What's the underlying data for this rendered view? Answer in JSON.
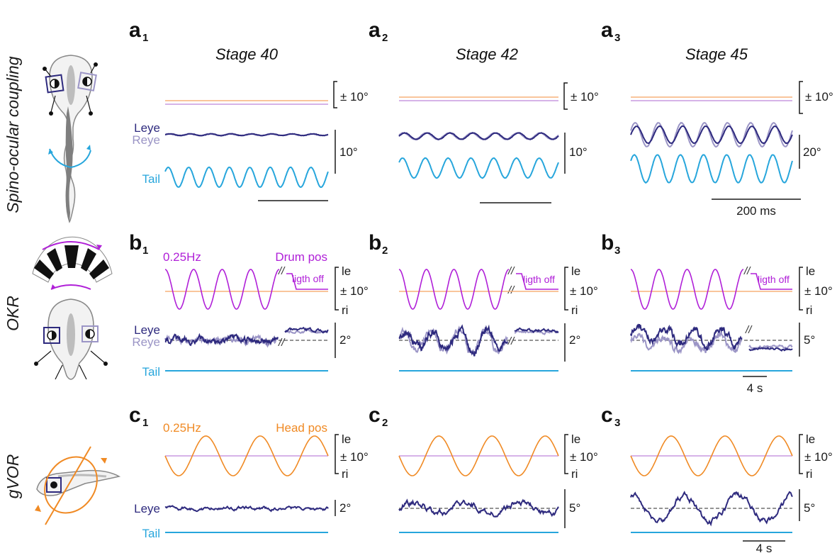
{
  "colors": {
    "leye": "#2e2a7e",
    "reye": "#9b95c6",
    "tail": "#27a6dc",
    "drum": "#b020d8",
    "head": "#f08a24",
    "ref_orange": "#f7b27a",
    "ref_violet": "#c99ae0",
    "black": "#1a1a1a",
    "gray": "#777777"
  },
  "icons": [
    "tadpole-dorsal-icon",
    "optokinetic-drum-icon",
    "tadpole-side-rotation-icon"
  ],
  "rows": [
    {
      "label": "Spino-ocular coupling"
    },
    {
      "label": "OKR"
    },
    {
      "label": "gVOR"
    }
  ],
  "panels": [
    {
      "letter": "a",
      "sub": "1"
    },
    {
      "letter": "a",
      "sub": "2"
    },
    {
      "letter": "a",
      "sub": "3"
    },
    {
      "letter": "b",
      "sub": "1"
    },
    {
      "letter": "b",
      "sub": "2"
    },
    {
      "letter": "b",
      "sub": "3"
    },
    {
      "letter": "c",
      "sub": "1"
    },
    {
      "letter": "c",
      "sub": "2"
    },
    {
      "letter": "c",
      "sub": "3"
    }
  ],
  "stages": [
    "Stage 40",
    "Stage 42",
    "Stage 45"
  ],
  "labels": {
    "leye": "Leye",
    "reye": "Reye",
    "tail": "Tail",
    "freq": "0.25Hz",
    "drum_pos": "Drum pos",
    "head_pos": "Head pos",
    "light_off": "ligth off",
    "le": "le",
    "ri": "ri",
    "pm10": "± 10°",
    "break": "//"
  },
  "scalebars": {
    "a1_eye": "10°",
    "a2_eye": "10°",
    "a3_eye": "20°",
    "b1_eye": "2°",
    "b2_eye": "2°",
    "b3_eye": "5°",
    "c1_eye": "2°",
    "c2_eye": "5°",
    "c3_eye": "5°",
    "time_a": "200 ms",
    "time_b": "4 s",
    "time_c": "4 s"
  },
  "chart_data": [
    {
      "type": "line",
      "panel": "a1",
      "title": "Stage 40",
      "x_unit": "ms",
      "series": [
        {
          "name": "Leye",
          "amplitude_deg": 1,
          "cycles": 8
        },
        {
          "name": "Reye",
          "amplitude_deg": 1,
          "cycles": 8
        },
        {
          "name": "Tail",
          "amplitude_deg": 10,
          "cycles": 8
        }
      ]
    },
    {
      "type": "line",
      "panel": "a2",
      "title": "Stage 42",
      "series": [
        {
          "name": "Leye",
          "amplitude_deg": 3,
          "cycles": 7
        },
        {
          "name": "Reye",
          "amplitude_deg": 3,
          "cycles": 7
        },
        {
          "name": "Tail",
          "amplitude_deg": 10,
          "cycles": 7
        }
      ]
    },
    {
      "type": "line",
      "panel": "a3",
      "title": "Stage 45",
      "series": [
        {
          "name": "Leye",
          "amplitude_deg": 10,
          "cycles": 7
        },
        {
          "name": "Reye",
          "amplitude_deg": 14,
          "cycles": 7
        },
        {
          "name": "Tail",
          "amplitude_deg": 14,
          "cycles": 7
        }
      ]
    },
    {
      "type": "line",
      "panel": "b1",
      "stimulus": "Drum pos",
      "stimulus_freq_hz": 0.25,
      "stimulus_amplitude_deg": 10,
      "cycles": 4,
      "series": [
        {
          "name": "Leye",
          "amplitude_deg": 0.3
        },
        {
          "name": "Reye",
          "amplitude_deg": 0.3
        },
        {
          "name": "Tail",
          "amplitude_deg": 0
        }
      ]
    },
    {
      "type": "line",
      "panel": "b2",
      "stimulus": "Drum pos",
      "stimulus_freq_hz": 0.25,
      "stimulus_amplitude_deg": 10,
      "cycles": 4,
      "series": [
        {
          "name": "Leye",
          "amplitude_deg": 2
        },
        {
          "name": "Reye",
          "amplitude_deg": 2.5
        },
        {
          "name": "Tail",
          "amplitude_deg": 0
        }
      ]
    },
    {
      "type": "line",
      "panel": "b3",
      "stimulus": "Drum pos",
      "stimulus_freq_hz": 0.25,
      "stimulus_amplitude_deg": 10,
      "cycles": 4,
      "series": [
        {
          "name": "Leye",
          "amplitude_deg": 2.5
        },
        {
          "name": "Reye",
          "amplitude_deg": 2
        },
        {
          "name": "Tail",
          "amplitude_deg": 0
        }
      ]
    },
    {
      "type": "line",
      "panel": "c1",
      "stimulus": "Head pos",
      "stimulus_freq_hz": 0.25,
      "stimulus_amplitude_deg": 10,
      "cycles": 3,
      "series": [
        {
          "name": "Leye",
          "amplitude_deg": 0.1
        },
        {
          "name": "Tail",
          "amplitude_deg": 0
        }
      ]
    },
    {
      "type": "line",
      "panel": "c2",
      "stimulus": "Head pos",
      "stimulus_freq_hz": 0.25,
      "stimulus_amplitude_deg": 10,
      "cycles": 3,
      "series": [
        {
          "name": "Leye",
          "amplitude_deg": 1.5
        },
        {
          "name": "Tail",
          "amplitude_deg": 0
        }
      ]
    },
    {
      "type": "line",
      "panel": "c3",
      "stimulus": "Head pos",
      "stimulus_freq_hz": 0.25,
      "stimulus_amplitude_deg": 10,
      "cycles": 3,
      "series": [
        {
          "name": "Leye",
          "amplitude_deg": 3.5
        },
        {
          "name": "Tail",
          "amplitude_deg": 0
        }
      ]
    }
  ]
}
